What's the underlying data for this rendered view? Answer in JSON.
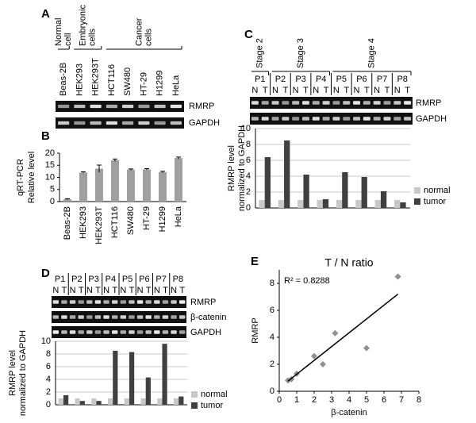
{
  "panel_letters": [
    "A",
    "B",
    "C",
    "D",
    "E"
  ],
  "panel_a": {
    "groups": [
      [
        "Normal",
        "cell"
      ],
      [
        "Embryonic",
        "cells"
      ],
      [
        "Cancer",
        "cells"
      ]
    ],
    "lanes": [
      "Beas-2B",
      "HEK293",
      "HEK293T",
      "HCT116",
      "SW480",
      "HT-29",
      "H1299",
      "HeLa"
    ],
    "rows": [
      "RMRP",
      "GAPDH"
    ]
  },
  "panel_c_gel": {
    "stages": [
      "Stage 2",
      "Stage 3",
      "Stage 4"
    ],
    "patients": [
      "P1",
      "P2",
      "P3",
      "P4",
      "P5",
      "P6",
      "P7",
      "P8"
    ],
    "lane_labels": [
      "N",
      "T"
    ],
    "rows": [
      "RMRP",
      "GAPDH"
    ]
  },
  "panel_d_gel": {
    "patients": [
      "P1",
      "P2",
      "P3",
      "P4",
      "P5",
      "P6",
      "P7",
      "P8"
    ],
    "lane_labels": [
      "N",
      "T"
    ],
    "rows": [
      "RMRP",
      "β-catenin",
      "GAPDH"
    ]
  },
  "chart_data": [
    {
      "type": "bar",
      "y_label": [
        "qRT-PCR",
        "Relative level"
      ],
      "categories": [
        "Beas-2B",
        "HEK293",
        "HEK293T",
        "HCT116",
        "SW480",
        "HT-29",
        "H1299",
        "HeLa"
      ],
      "values": [
        1,
        12,
        13.6,
        17.1,
        13.2,
        13.3,
        12.2,
        18
      ],
      "errors": [
        0.2,
        0.3,
        1.5,
        0.5,
        0.3,
        0.3,
        0.3,
        0.4
      ],
      "color": "#a0a0a0",
      "ylim": [
        0,
        20
      ],
      "yticks": [
        0,
        5,
        10,
        15,
        20
      ],
      "grid": false
    },
    {
      "type": "bar",
      "y_label": [
        "RMRP level",
        "normalized to GAPDH"
      ],
      "series": [
        {
          "name": "normal",
          "color": "#c8c8c8",
          "values": [
            1,
            1,
            1,
            1,
            1,
            1,
            1,
            1
          ]
        },
        {
          "name": "tumor",
          "color": "#404040",
          "values": [
            6.4,
            8.5,
            4.2,
            1.1,
            4.5,
            3.9,
            2.1,
            0.7
          ]
        }
      ],
      "ylim": [
        0,
        10
      ],
      "yticks": [
        0,
        2,
        4,
        6,
        8,
        10
      ],
      "grid": true,
      "legend": "right"
    },
    {
      "type": "bar",
      "y_label": [
        "RMRP level",
        "normalized to GAPDH"
      ],
      "series": [
        {
          "name": "normal",
          "color": "#c8c8c8",
          "values": [
            1,
            1,
            1,
            1,
            1,
            1,
            1,
            1
          ]
        },
        {
          "name": "tumor",
          "color": "#404040",
          "values": [
            1.5,
            0.6,
            0.6,
            8.5,
            8.3,
            4.3,
            9.6,
            1.3
          ]
        }
      ],
      "ylim": [
        0,
        10
      ],
      "yticks": [
        0,
        2,
        4,
        6,
        8,
        10
      ],
      "grid": true,
      "legend": "right"
    },
    {
      "type": "scatter",
      "title": "T / N ratio",
      "x_label": "β-catenin",
      "y_label": [
        "RMRP"
      ],
      "annotation": "R² = 0.8288",
      "x": [
        0.5,
        0.7,
        1,
        2,
        2.5,
        3.2,
        5,
        6.8
      ],
      "values": [
        0.8,
        0.9,
        1.3,
        2.6,
        2,
        4.3,
        3.2,
        8.5
      ],
      "color": "#909090",
      "trendline": {
        "x": [
          0.5,
          6.8
        ],
        "y": [
          0.75,
          7.2
        ]
      },
      "xlim": [
        0,
        8
      ],
      "xticks": [
        0,
        1,
        2,
        3,
        4,
        5,
        6,
        7,
        8
      ],
      "ylim": [
        0,
        9
      ],
      "yticks": [
        0,
        2,
        4,
        6,
        8
      ],
      "grid": false
    }
  ]
}
